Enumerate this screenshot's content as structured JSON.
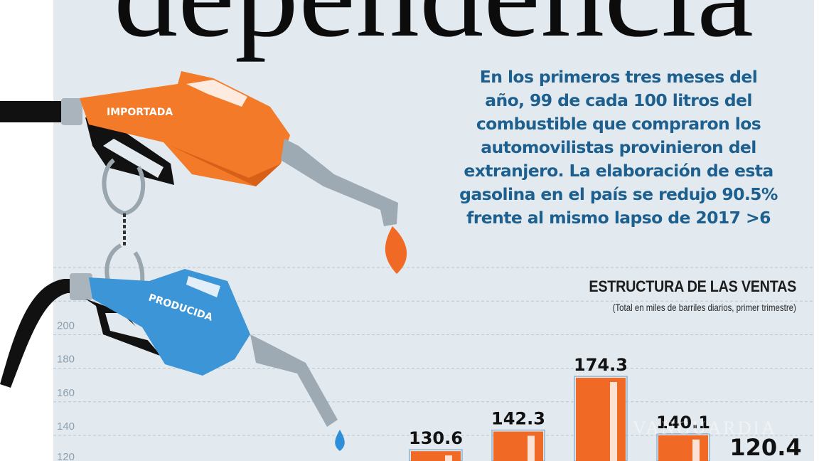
{
  "headline": "dependencia",
  "blurb": [
    "En los primeros tres meses del",
    "año, 99 de cada 100 litros del",
    "combustible que compraron los",
    "automovilistas provinieron del",
    "extranjero. La elaboración de esta",
    "gasolina en el país se redujo 90.5%",
    "frente al mismo lapso de 2017 >6"
  ],
  "pumps": {
    "imported_label": "IMPORTADA",
    "produced_label": "PRODUCIDA"
  },
  "watermark": "VANGUARDIA",
  "colors": {
    "bar": "#f06a25",
    "text_blue": "#1d5f8e",
    "imported_pump": "#f27a28",
    "produced_pump": "#3c95d6",
    "background": "#e3eaef"
  },
  "chart_data": {
    "type": "bar",
    "title": "ESTRUCTURA DE LAS VENTAS",
    "subtitle": "(Total en miles de barriles diarios, primer trimestre)",
    "y_ticks": [
      120,
      140,
      160,
      180,
      200
    ],
    "ylim": [
      120,
      240
    ],
    "grid": true,
    "values": [
      130.6,
      142.3,
      174.3,
      140.1,
      120.4
    ],
    "value_labels": [
      "130.6",
      "142.3",
      "174.3",
      "140.1",
      "120.4"
    ]
  }
}
